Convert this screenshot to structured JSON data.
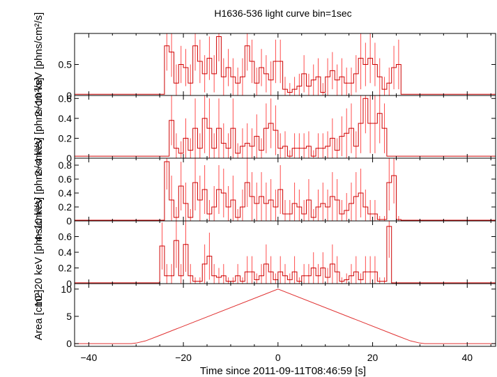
{
  "chart_data": {
    "type": "line",
    "title": "H1636-536 light curve bin=1sec",
    "xlabel": "Time since 2011-09-11T08:46:59 [s]",
    "xlim": [
      -43,
      46
    ],
    "xticks": [
      -40,
      -20,
      0,
      20,
      40
    ],
    "x_tick_labels": [
      "−40",
      "−20",
      "0",
      "20",
      "40"
    ],
    "colors": {
      "series": "#cc0000",
      "errors": "#ff4d4d",
      "frame": "#000000"
    },
    "panels": [
      {
        "id": "band-2-10",
        "ylabel": "2−10 keV [phns/cm²/s]",
        "ylim": [
          0,
          1.0
        ],
        "yticks": [
          0,
          0.5
        ],
        "y_tick_labels": [
          "0",
          "0.5"
        ],
        "series": {
          "x": [
            -24,
            -23,
            -22,
            -21,
            -20,
            -19,
            -18,
            -17,
            -16,
            -15,
            -14,
            -13,
            -12,
            -11,
            -10,
            -9,
            -8,
            -7,
            -6,
            -5,
            -4,
            -3,
            -2,
            -1,
            0,
            1,
            2,
            3,
            4,
            5,
            6,
            7,
            8,
            9,
            10,
            11,
            12,
            13,
            14,
            15,
            16,
            17,
            18,
            19,
            20,
            21,
            22,
            23,
            24,
            25
          ],
          "values": [
            0.8,
            0.7,
            0.2,
            0.5,
            0.45,
            0.2,
            0.8,
            0.55,
            0.35,
            0.6,
            0.35,
            0.95,
            0.3,
            0.45,
            0.3,
            0.2,
            0.3,
            0.8,
            0.55,
            0.2,
            0.45,
            0.35,
            0.25,
            0.55,
            0.55,
            0.1,
            0.05,
            0.1,
            0.15,
            0.35,
            0.15,
            0.25,
            0.3,
            0.05,
            0.3,
            0.4,
            0.25,
            0.3,
            0.2,
            0.2,
            0.35,
            0.6,
            0.5,
            0.6,
            0.5,
            0.3,
            0.1,
            0.2,
            0.45,
            0.5
          ],
          "errors": [
            0.4,
            0.4,
            0.3,
            0.3,
            0.3,
            0.3,
            0.4,
            0.35,
            0.3,
            0.35,
            0.3,
            0.4,
            0.3,
            0.3,
            0.3,
            0.25,
            0.3,
            0.4,
            0.35,
            0.25,
            0.3,
            0.3,
            0.3,
            0.35,
            0.35,
            0.2,
            0.15,
            0.2,
            0.2,
            0.3,
            0.2,
            0.25,
            0.3,
            0.15,
            0.3,
            0.3,
            0.25,
            0.3,
            0.25,
            0.25,
            0.3,
            0.5,
            0.35,
            0.4,
            0.35,
            0.3,
            0.2,
            0.25,
            0.35,
            0.4
          ],
          "baseline": 0.02
        }
      },
      {
        "id": "band-2-4",
        "ylabel": "2−4 keV [phns/cm²/s]",
        "ylim": [
          0,
          0.63
        ],
        "yticks": [
          0,
          0.2,
          0.4,
          0.6
        ],
        "y_tick_labels": [
          "0",
          "0.2",
          "0.4",
          "0.6"
        ],
        "series": {
          "x": [
            -23,
            -22,
            -21,
            -20,
            -19,
            -18,
            -17,
            -16,
            -15,
            -14,
            -13,
            -12,
            -11,
            -10,
            -9,
            -8,
            -7,
            -6,
            -5,
            -4,
            -3,
            -2,
            -1,
            0,
            1,
            2,
            3,
            4,
            5,
            6,
            7,
            8,
            9,
            10,
            11,
            12,
            13,
            14,
            15,
            16,
            17,
            18,
            19,
            20,
            21,
            22
          ],
          "values": [
            0.38,
            0.1,
            0.05,
            0.2,
            0.08,
            0.3,
            0.1,
            0.4,
            0.3,
            0.1,
            0.3,
            0.15,
            0.1,
            0.3,
            0.05,
            0.12,
            0.15,
            0.12,
            0.22,
            0.08,
            0.3,
            0.35,
            0.28,
            0.1,
            0.12,
            0.02,
            0.1,
            0.1,
            0.1,
            0.12,
            0.02,
            0.1,
            0.1,
            0.12,
            0.2,
            0.08,
            0.22,
            0.25,
            0.3,
            0.12,
            0.35,
            0.6,
            0.35,
            0.35,
            0.45,
            0.3
          ],
          "errors": [
            0.25,
            0.15,
            0.12,
            0.2,
            0.12,
            0.3,
            0.15,
            0.35,
            0.3,
            0.15,
            0.3,
            0.2,
            0.15,
            0.3,
            0.1,
            0.18,
            0.2,
            0.18,
            0.22,
            0.12,
            0.25,
            0.25,
            0.25,
            0.15,
            0.15,
            0.06,
            0.15,
            0.15,
            0.15,
            0.15,
            0.06,
            0.15,
            0.15,
            0.15,
            0.2,
            0.12,
            0.2,
            0.25,
            0.25,
            0.15,
            0.3,
            0.35,
            0.3,
            0.3,
            0.3,
            0.25
          ],
          "baseline": 0.02
        }
      },
      {
        "id": "band-4-10",
        "ylabel": "4−10 keV [phns/cm²/s]",
        "ylim": [
          0,
          0.9
        ],
        "yticks": [
          0,
          0.2,
          0.4,
          0.6,
          0.8
        ],
        "y_tick_labels": [
          "0",
          "0.2",
          "0.4",
          "0.6",
          "0.8"
        ],
        "series": {
          "x": [
            -24,
            -23,
            -22,
            -21,
            -20,
            -19,
            -18,
            -17,
            -16,
            -15,
            -14,
            -13,
            -12,
            -11,
            -10,
            -9,
            -8,
            -7,
            -6,
            -5,
            -4,
            -3,
            -2,
            -1,
            0,
            1,
            2,
            3,
            4,
            5,
            6,
            7,
            8,
            9,
            10,
            11,
            12,
            13,
            14,
            15,
            16,
            17,
            18,
            19,
            20,
            21,
            22,
            23,
            24,
            25
          ],
          "values": [
            0.85,
            0.3,
            0.05,
            0.5,
            0.25,
            0.05,
            0.55,
            0.3,
            0.45,
            0.1,
            0.2,
            0.45,
            0.4,
            0.2,
            0.3,
            0.05,
            0.2,
            0.55,
            0.35,
            0.25,
            0.35,
            0.25,
            0.3,
            0.2,
            0.45,
            0.1,
            0.1,
            0.25,
            0.2,
            0.1,
            0.3,
            0.05,
            0.2,
            0.25,
            0.2,
            0.35,
            0.3,
            0.1,
            0.15,
            0.25,
            0.35,
            0.4,
            0.2,
            0.1,
            0.1,
            0.02,
            0.02,
            0.55,
            0.65,
            0.02
          ],
          "errors": [
            0.4,
            0.35,
            0.15,
            0.35,
            0.3,
            0.12,
            0.4,
            0.35,
            0.35,
            0.2,
            0.3,
            0.35,
            0.35,
            0.3,
            0.35,
            0.12,
            0.25,
            0.35,
            0.35,
            0.3,
            0.35,
            0.3,
            0.3,
            0.25,
            0.35,
            0.2,
            0.2,
            0.3,
            0.25,
            0.2,
            0.3,
            0.12,
            0.25,
            0.3,
            0.25,
            0.35,
            0.3,
            0.2,
            0.25,
            0.3,
            0.35,
            0.35,
            0.25,
            0.2,
            0.2,
            0.05,
            0.05,
            0.4,
            0.4,
            0.05
          ],
          "baseline": 0.01
        }
      },
      {
        "id": "band-10-20",
        "ylabel": "10−20 keV [phns/cm²/s]",
        "ylim": [
          0,
          0.8
        ],
        "yticks": [
          0,
          0.2,
          0.4,
          0.6
        ],
        "y_tick_labels": [
          "0",
          "0.2",
          "0.4",
          "0.6"
        ],
        "series": {
          "x": [
            -25,
            -24,
            -23,
            -22,
            -21,
            -20,
            -19,
            -18,
            -17,
            -16,
            -15,
            -14,
            -13,
            -12,
            -11,
            -10,
            -9,
            -8,
            -7,
            -6,
            -5,
            -4,
            -3,
            -2,
            -1,
            0,
            1,
            2,
            3,
            4,
            5,
            6,
            7,
            8,
            9,
            10,
            11,
            12,
            13,
            14,
            15,
            16,
            17,
            18,
            19,
            20,
            21,
            22,
            23
          ],
          "values": [
            0.48,
            0.1,
            0.1,
            0.55,
            0.1,
            0.5,
            0.1,
            0.03,
            0.03,
            0.25,
            0.35,
            0.1,
            0.08,
            0.1,
            0.03,
            0.03,
            0.1,
            0.03,
            0.15,
            0.15,
            0.05,
            0.1,
            0.25,
            0.15,
            0.05,
            0.15,
            0.1,
            0.05,
            0.15,
            0.03,
            0.1,
            0.1,
            0.2,
            0.1,
            0.2,
            0.08,
            0.25,
            0.15,
            0.03,
            0.05,
            0.1,
            0.15,
            0.05,
            0.15,
            0.15,
            0.15,
            0.03,
            0.03,
            0.73
          ],
          "errors": [
            0.3,
            0.15,
            0.15,
            0.35,
            0.15,
            0.35,
            0.15,
            0.05,
            0.05,
            0.25,
            0.3,
            0.15,
            0.12,
            0.15,
            0.05,
            0.05,
            0.15,
            0.05,
            0.2,
            0.2,
            0.08,
            0.15,
            0.25,
            0.2,
            0.08,
            0.2,
            0.15,
            0.08,
            0.2,
            0.05,
            0.15,
            0.15,
            0.2,
            0.15,
            0.2,
            0.12,
            0.25,
            0.2,
            0.05,
            0.08,
            0.15,
            0.2,
            0.08,
            0.2,
            0.2,
            0.2,
            0.05,
            0.05,
            0.4
          ],
          "baseline": 0.01
        }
      },
      {
        "id": "area",
        "ylabel": "Area [cm2]",
        "ylim": [
          -0.5,
          11
        ],
        "yticks": [
          0,
          5,
          10
        ],
        "y_tick_labels": [
          "0",
          "5",
          "10"
        ],
        "curve": {
          "x": [
            -43,
            -31,
            -30,
            -28,
            -25,
            0,
            25,
            28,
            30,
            31,
            46
          ],
          "values": [
            0,
            0,
            0.1,
            0.5,
            1.5,
            10,
            1.5,
            0.5,
            0.1,
            0,
            0
          ]
        }
      }
    ]
  }
}
